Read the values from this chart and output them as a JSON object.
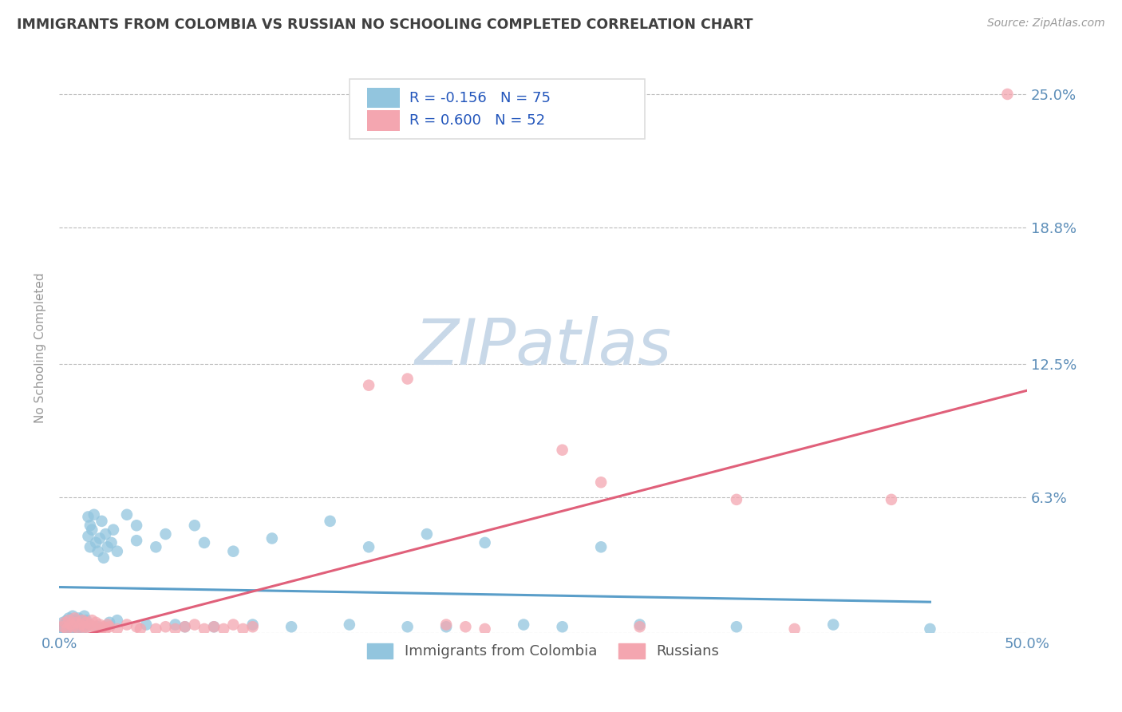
{
  "title": "IMMIGRANTS FROM COLOMBIA VS RUSSIAN NO SCHOOLING COMPLETED CORRELATION CHART",
  "source": "Source: ZipAtlas.com",
  "ylabel": "No Schooling Completed",
  "xlim": [
    0.0,
    0.5
  ],
  "ylim": [
    0.0,
    0.265
  ],
  "ytick_vals": [
    0.0,
    0.063,
    0.125,
    0.188,
    0.25
  ],
  "ytick_labels": [
    "",
    "6.3%",
    "12.5%",
    "18.8%",
    "25.0%"
  ],
  "colombia_color": "#92C5DE",
  "russia_color": "#F4A6B0",
  "colombia_R": -0.156,
  "colombia_N": 75,
  "russia_R": 0.6,
  "russia_N": 52,
  "colombia_trend_color": "#5A9EC9",
  "russia_trend_color": "#E0607A",
  "legend_label_colombia": "Immigrants from Colombia",
  "legend_label_russia": "Russians",
  "background_color": "#FFFFFF",
  "grid_color": "#BBBBBB",
  "watermark": "ZIPatlas",
  "watermark_color_zip": "#C8D8E8",
  "watermark_color_atlas": "#C8D8E8",
  "title_color": "#404040",
  "tick_label_color": "#5B8DB8",
  "colombia_points": [
    [
      0.001,
      0.002
    ],
    [
      0.002,
      0.003
    ],
    [
      0.002,
      0.005
    ],
    [
      0.003,
      0.001
    ],
    [
      0.003,
      0.004
    ],
    [
      0.004,
      0.002
    ],
    [
      0.004,
      0.006
    ],
    [
      0.005,
      0.003
    ],
    [
      0.005,
      0.007
    ],
    [
      0.006,
      0.002
    ],
    [
      0.006,
      0.005
    ],
    [
      0.007,
      0.004
    ],
    [
      0.007,
      0.008
    ],
    [
      0.008,
      0.003
    ],
    [
      0.008,
      0.006
    ],
    [
      0.009,
      0.002
    ],
    [
      0.009,
      0.005
    ],
    [
      0.01,
      0.004
    ],
    [
      0.01,
      0.007
    ],
    [
      0.011,
      0.003
    ],
    [
      0.011,
      0.006
    ],
    [
      0.012,
      0.002
    ],
    [
      0.012,
      0.005
    ],
    [
      0.013,
      0.004
    ],
    [
      0.013,
      0.008
    ],
    [
      0.014,
      0.003
    ],
    [
      0.014,
      0.006
    ],
    [
      0.015,
      0.054
    ],
    [
      0.015,
      0.045
    ],
    [
      0.016,
      0.05
    ],
    [
      0.016,
      0.04
    ],
    [
      0.017,
      0.048
    ],
    [
      0.018,
      0.055
    ],
    [
      0.019,
      0.042
    ],
    [
      0.02,
      0.003
    ],
    [
      0.02,
      0.038
    ],
    [
      0.021,
      0.044
    ],
    [
      0.022,
      0.052
    ],
    [
      0.023,
      0.035
    ],
    [
      0.024,
      0.046
    ],
    [
      0.025,
      0.04
    ],
    [
      0.026,
      0.005
    ],
    [
      0.027,
      0.042
    ],
    [
      0.028,
      0.048
    ],
    [
      0.03,
      0.006
    ],
    [
      0.03,
      0.038
    ],
    [
      0.035,
      0.055
    ],
    [
      0.04,
      0.05
    ],
    [
      0.04,
      0.043
    ],
    [
      0.045,
      0.004
    ],
    [
      0.05,
      0.04
    ],
    [
      0.055,
      0.046
    ],
    [
      0.06,
      0.004
    ],
    [
      0.065,
      0.003
    ],
    [
      0.07,
      0.05
    ],
    [
      0.075,
      0.042
    ],
    [
      0.08,
      0.003
    ],
    [
      0.09,
      0.038
    ],
    [
      0.1,
      0.004
    ],
    [
      0.11,
      0.044
    ],
    [
      0.12,
      0.003
    ],
    [
      0.14,
      0.052
    ],
    [
      0.15,
      0.004
    ],
    [
      0.16,
      0.04
    ],
    [
      0.18,
      0.003
    ],
    [
      0.19,
      0.046
    ],
    [
      0.2,
      0.003
    ],
    [
      0.22,
      0.042
    ],
    [
      0.24,
      0.004
    ],
    [
      0.26,
      0.003
    ],
    [
      0.28,
      0.04
    ],
    [
      0.3,
      0.004
    ],
    [
      0.35,
      0.003
    ],
    [
      0.4,
      0.004
    ],
    [
      0.45,
      0.002
    ]
  ],
  "russia_points": [
    [
      0.002,
      0.003
    ],
    [
      0.003,
      0.005
    ],
    [
      0.004,
      0.002
    ],
    [
      0.005,
      0.006
    ],
    [
      0.006,
      0.004
    ],
    [
      0.007,
      0.003
    ],
    [
      0.008,
      0.007
    ],
    [
      0.009,
      0.005
    ],
    [
      0.01,
      0.002
    ],
    [
      0.011,
      0.004
    ],
    [
      0.012,
      0.006
    ],
    [
      0.013,
      0.003
    ],
    [
      0.014,
      0.005
    ],
    [
      0.015,
      0.002
    ],
    [
      0.016,
      0.004
    ],
    [
      0.017,
      0.006
    ],
    [
      0.018,
      0.003
    ],
    [
      0.019,
      0.005
    ],
    [
      0.02,
      0.002
    ],
    [
      0.021,
      0.004
    ],
    [
      0.022,
      0.002
    ],
    [
      0.023,
      0.003
    ],
    [
      0.024,
      0.002
    ],
    [
      0.025,
      0.004
    ],
    [
      0.026,
      0.003
    ],
    [
      0.03,
      0.002
    ],
    [
      0.035,
      0.004
    ],
    [
      0.04,
      0.003
    ],
    [
      0.042,
      0.002
    ],
    [
      0.05,
      0.002
    ],
    [
      0.055,
      0.003
    ],
    [
      0.06,
      0.002
    ],
    [
      0.065,
      0.003
    ],
    [
      0.07,
      0.004
    ],
    [
      0.075,
      0.002
    ],
    [
      0.08,
      0.003
    ],
    [
      0.085,
      0.002
    ],
    [
      0.09,
      0.004
    ],
    [
      0.095,
      0.002
    ],
    [
      0.1,
      0.003
    ],
    [
      0.16,
      0.115
    ],
    [
      0.18,
      0.118
    ],
    [
      0.2,
      0.004
    ],
    [
      0.21,
      0.003
    ],
    [
      0.22,
      0.002
    ],
    [
      0.26,
      0.085
    ],
    [
      0.28,
      0.07
    ],
    [
      0.3,
      0.003
    ],
    [
      0.35,
      0.062
    ],
    [
      0.38,
      0.002
    ],
    [
      0.43,
      0.062
    ],
    [
      0.49,
      0.25
    ]
  ]
}
